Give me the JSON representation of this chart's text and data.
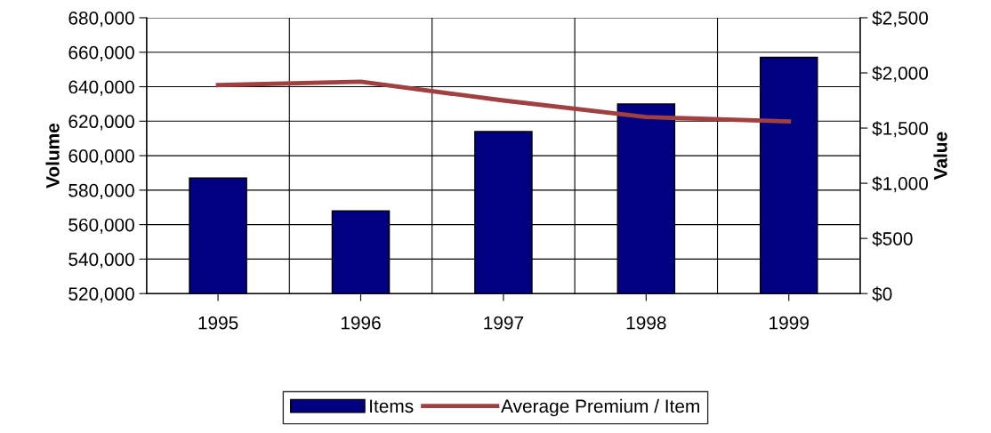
{
  "chart_data": {
    "type": "bar",
    "categories": [
      "1995",
      "1996",
      "1997",
      "1998",
      "1999"
    ],
    "ylabel": "Volume",
    "y2label": "Value",
    "series": [
      {
        "name": "Items",
        "color": "#000080",
        "values": [
          587000,
          568000,
          614000,
          630000,
          657000
        ]
      },
      {
        "name": "Average Premium / Item",
        "type": "line",
        "axis": "y2",
        "color": "#a04040",
        "values": [
          1890,
          1920,
          1750,
          1600,
          1560
        ]
      }
    ],
    "ylim": [
      520000,
      680000
    ],
    "yticks": [
      {
        "value": 520000,
        "label": "520,000"
      },
      {
        "value": 540000,
        "label": "540,000"
      },
      {
        "value": 560000,
        "label": "560,000"
      },
      {
        "value": 580000,
        "label": "580,000"
      },
      {
        "value": 600000,
        "label": "600,000"
      },
      {
        "value": 620000,
        "label": "620,000"
      },
      {
        "value": 640000,
        "label": "640,000"
      },
      {
        "value": 660000,
        "label": "660,000"
      },
      {
        "value": 680000,
        "label": "680,000"
      }
    ],
    "y2lim": [
      0,
      2500
    ],
    "y2ticks": [
      {
        "value": 0,
        "label": "$0"
      },
      {
        "value": 500,
        "label": "$500"
      },
      {
        "value": 1000,
        "label": "$1,000"
      },
      {
        "value": 1500,
        "label": "$1,500"
      },
      {
        "value": 2000,
        "label": "$2,000"
      },
      {
        "value": 2500,
        "label": "$2,500"
      }
    ],
    "grid": true,
    "legend": "bottom",
    "marker": "none",
    "line_style": "solid"
  }
}
